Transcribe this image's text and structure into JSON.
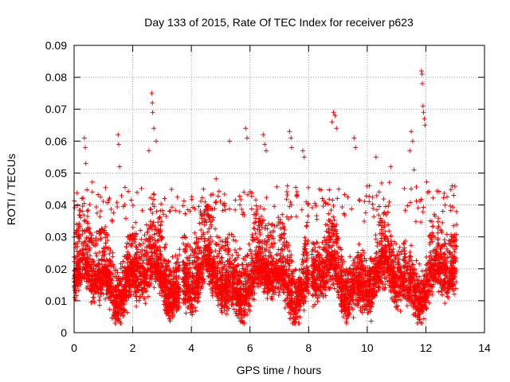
{
  "chart_data": {
    "type": "scatter",
    "title": "Day 133 of 2015, Rate Of TEC Index for receiver p623",
    "xlabel": "GPS time / hours",
    "ylabel": "ROTI / TECUs",
    "xlim": [
      0,
      14
    ],
    "ylim": [
      0,
      0.09
    ],
    "grid": true,
    "marker": "+",
    "marker_color": "#ff0000",
    "grid_color": "#a0a0a0",
    "x_ticks": [
      {
        "value": 0,
        "label": "0"
      },
      {
        "value": 2,
        "label": "2"
      },
      {
        "value": 4,
        "label": "4"
      },
      {
        "value": 6,
        "label": "6"
      },
      {
        "value": 8,
        "label": "8"
      },
      {
        "value": 10,
        "label": "10"
      },
      {
        "value": 12,
        "label": "12"
      },
      {
        "value": 14,
        "label": "14"
      }
    ],
    "y_ticks": [
      {
        "value": 0,
        "label": "0"
      },
      {
        "value": 0.01,
        "label": "0.01"
      },
      {
        "value": 0.02,
        "label": "0.02"
      },
      {
        "value": 0.03,
        "label": "0.03"
      },
      {
        "value": 0.04,
        "label": "0.04"
      },
      {
        "value": 0.05,
        "label": "0.05"
      },
      {
        "value": 0.06,
        "label": "0.06"
      },
      {
        "value": 0.07,
        "label": "0.07"
      },
      {
        "value": 0.08,
        "label": "0.08"
      },
      {
        "value": 0.09,
        "label": "0.09"
      }
    ],
    "density_segments": [
      {
        "x_range": [
          0.0,
          3.6
        ],
        "median": 0.016,
        "upper_spread": 0.02,
        "points_per_hour": 480
      },
      {
        "x_range": [
          3.7,
          8.0
        ],
        "median": 0.016,
        "upper_spread": 0.022,
        "points_per_hour": 480
      },
      {
        "x_range": [
          8.1,
          13.05
        ],
        "median": 0.014,
        "upper_spread": 0.02,
        "points_per_hour": 440
      }
    ],
    "outliers": [
      {
        "x": 0.35,
        "y": 0.061
      },
      {
        "x": 0.38,
        "y": 0.058
      },
      {
        "x": 0.4,
        "y": 0.053
      },
      {
        "x": 1.5,
        "y": 0.062
      },
      {
        "x": 1.52,
        "y": 0.059
      },
      {
        "x": 1.55,
        "y": 0.052
      },
      {
        "x": 2.65,
        "y": 0.075
      },
      {
        "x": 2.67,
        "y": 0.072
      },
      {
        "x": 2.68,
        "y": 0.069
      },
      {
        "x": 2.72,
        "y": 0.064
      },
      {
        "x": 2.8,
        "y": 0.06
      },
      {
        "x": 2.55,
        "y": 0.057
      },
      {
        "x": 5.3,
        "y": 0.06
      },
      {
        "x": 5.85,
        "y": 0.064
      },
      {
        "x": 5.9,
        "y": 0.061
      },
      {
        "x": 6.45,
        "y": 0.062
      },
      {
        "x": 6.5,
        "y": 0.059
      },
      {
        "x": 6.55,
        "y": 0.057
      },
      {
        "x": 7.35,
        "y": 0.063
      },
      {
        "x": 7.4,
        "y": 0.061
      },
      {
        "x": 7.42,
        "y": 0.058
      },
      {
        "x": 7.8,
        "y": 0.057
      },
      {
        "x": 7.85,
        "y": 0.055
      },
      {
        "x": 8.85,
        "y": 0.069
      },
      {
        "x": 8.9,
        "y": 0.068
      },
      {
        "x": 8.8,
        "y": 0.066
      },
      {
        "x": 8.95,
        "y": 0.064
      },
      {
        "x": 9.55,
        "y": 0.061
      },
      {
        "x": 9.6,
        "y": 0.058
      },
      {
        "x": 10.3,
        "y": 0.055
      },
      {
        "x": 10.8,
        "y": 0.052
      },
      {
        "x": 11.5,
        "y": 0.063
      },
      {
        "x": 11.55,
        "y": 0.06
      },
      {
        "x": 11.45,
        "y": 0.057
      },
      {
        "x": 11.6,
        "y": 0.051
      },
      {
        "x": 11.85,
        "y": 0.082
      },
      {
        "x": 11.87,
        "y": 0.081
      },
      {
        "x": 11.88,
        "y": 0.078
      },
      {
        "x": 11.9,
        "y": 0.071
      },
      {
        "x": 11.92,
        "y": 0.069
      },
      {
        "x": 11.95,
        "y": 0.067
      },
      {
        "x": 11.97,
        "y": 0.065
      },
      {
        "x": 12.9,
        "y": 0.046
      },
      {
        "x": 12.95,
        "y": 0.043
      }
    ]
  }
}
